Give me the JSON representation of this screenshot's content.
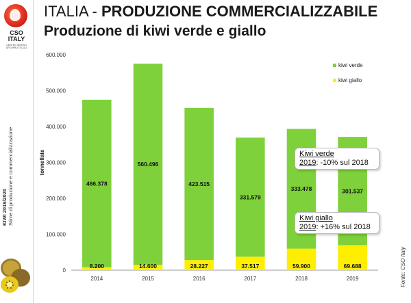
{
  "logo": {
    "name": "CSO",
    "country": "ITALY",
    "tagline": "CENTRO SERVIZI ORTOFRUTTICOLI"
  },
  "header": {
    "title_prefix": "ITALIA - ",
    "title_bold": "PRODUZIONE COMMERCIALIZZABILE",
    "subtitle": "Produzione di kiwi verde e giallo"
  },
  "sidebar": {
    "line1": "KIWI 2019/2020",
    "line2": "Stime di produzione e commercializzazione"
  },
  "source": "Fonte: CSO Italy",
  "annotations": [
    {
      "title": "Kiwi verde",
      "year": "2019",
      "text": ": -10% sul 2018"
    },
    {
      "title": "Kiwi giallo",
      "year": "2019",
      "text": ": +16% sul 2018"
    }
  ],
  "colors": {
    "verde": "#7ed13a",
    "giallo": "#ffee00"
  },
  "chart_data": {
    "type": "bar",
    "stacked": true,
    "categories": [
      "2014",
      "2015",
      "2016",
      "2017",
      "2018",
      "2019"
    ],
    "series": [
      {
        "name": "kiwi giallo",
        "values": [
          8200,
          14600,
          28227,
          37517,
          59900,
          69688
        ],
        "labels": [
          "8.200",
          "14.600",
          "28.227",
          "37.517",
          "59.900",
          "69.688"
        ]
      },
      {
        "name": "kiwi verde",
        "values": [
          466378,
          560496,
          423515,
          331579,
          333478,
          301537
        ],
        "labels": [
          "466.378",
          "560.496",
          "423.515",
          "331.579",
          "333.478",
          "301.537"
        ]
      }
    ],
    "ylabel": "tonnellate",
    "ylim": [
      0,
      600000
    ],
    "yticks": [
      "0",
      "100.000",
      "200.000",
      "300.000",
      "400.000",
      "500.000",
      "600.000"
    ],
    "legend_position": "top-right",
    "grid": false
  }
}
